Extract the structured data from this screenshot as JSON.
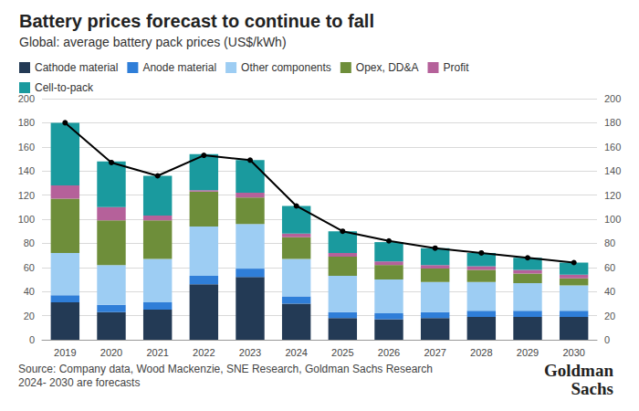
{
  "chart_data": {
    "type": "bar",
    "title": "Battery prices forecast to continue to fall",
    "subtitle": "Global: average battery pack prices (US$/kWh)",
    "notes": [
      "Source: Company data, Wood Mackenzie, SNE Research, Goldman Sachs Research",
      "2024- 2030 are forecasts"
    ],
    "logo": [
      "Goldman",
      "Sachs"
    ],
    "stacked": true,
    "grid": true,
    "legend": "top-left",
    "categories": [
      "2019",
      "2020",
      "2021",
      "2022",
      "2023",
      "2024",
      "2025",
      "2026",
      "2027",
      "2028",
      "2029",
      "2030"
    ],
    "series": [
      {
        "name": "Cathode material",
        "color": "#233a55",
        "values": [
          31,
          23,
          25,
          46,
          52,
          30,
          18,
          17,
          18,
          19,
          19,
          19
        ]
      },
      {
        "name": "Anode material",
        "color": "#2f7ed8",
        "values": [
          6,
          6,
          6,
          7,
          7,
          6,
          5,
          5,
          5,
          5,
          5,
          5
        ]
      },
      {
        "name": "Other components",
        "color": "#9dcdf3",
        "values": [
          35,
          33,
          36,
          41,
          37,
          31,
          30,
          28,
          25,
          24,
          23,
          21
        ]
      },
      {
        "name": "Opex, DD&A",
        "color": "#6e8e3a",
        "values": [
          45,
          37,
          32,
          29,
          22,
          18,
          16,
          12,
          11,
          10,
          8,
          6
        ]
      },
      {
        "name": "Profit",
        "color": "#b5619a",
        "values": [
          11,
          11,
          4,
          1,
          4,
          3,
          3,
          3,
          3,
          3,
          3,
          3
        ]
      },
      {
        "name": "Cell-to-pack",
        "color": "#1a9a9e",
        "values": [
          52,
          38,
          33,
          30,
          27,
          23,
          18,
          16,
          14,
          11,
          10,
          10
        ]
      },
      {
        "type": "line",
        "axis": "y2",
        "color": "#000000",
        "marker": "circle",
        "values": [
          180,
          147,
          136,
          153,
          149,
          111,
          90,
          82,
          76,
          72,
          68,
          64
        ]
      }
    ],
    "ylim": [
      0,
      200
    ],
    "yticks": [
      0,
      20,
      40,
      60,
      80,
      100,
      120,
      140,
      160,
      180,
      200
    ],
    "y2lim": [
      0,
      200
    ],
    "y2ticks": [
      0,
      20,
      40,
      60,
      80,
      100,
      120,
      140,
      160,
      180,
      200
    ]
  }
}
